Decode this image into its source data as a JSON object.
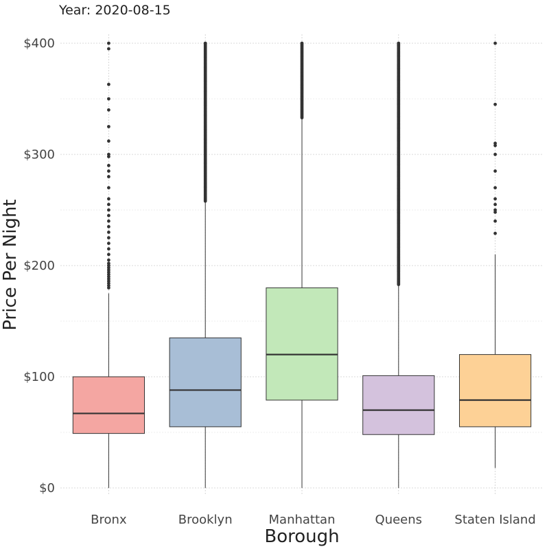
{
  "chart_data": {
    "type": "boxplot",
    "title": "Year: 2020-08-15",
    "xlabel": "Borough",
    "ylabel": "Price Per Night",
    "ylim": [
      0,
      400
    ],
    "y_ticks": [
      0,
      100,
      200,
      300,
      400
    ],
    "y_tick_labels": [
      "$0",
      "$100",
      "$200",
      "$300",
      "$400"
    ],
    "grid": true,
    "legend": "none",
    "categories": [
      "Bronx",
      "Brooklyn",
      "Manhattan",
      "Queens",
      "Staten Island"
    ],
    "boxes": [
      {
        "name": "Bronx",
        "color": "#F4A6A2",
        "whisker_low": 0,
        "q1": 49,
        "median": 67,
        "q3": 100,
        "whisker_high": 175,
        "outliers": [
          180,
          182,
          184,
          186,
          188,
          190,
          192,
          194,
          196,
          198,
          200,
          202,
          205,
          210,
          215,
          220,
          225,
          230,
          235,
          240,
          245,
          250,
          255,
          260,
          270,
          280,
          285,
          290,
          298,
          300,
          312,
          325,
          340,
          350,
          363,
          395,
          400
        ]
      },
      {
        "name": "Brooklyn",
        "color": "#A8BED6",
        "whisker_low": 0,
        "q1": 55,
        "median": 88,
        "q3": 135,
        "whisker_high": 257,
        "outliers_dense_range": [
          258,
          400
        ],
        "outliers": []
      },
      {
        "name": "Manhattan",
        "color": "#C2E8B9",
        "whisker_low": 0,
        "q1": 79,
        "median": 120,
        "q3": 180,
        "whisker_high": 332,
        "outliers_dense_range": [
          333,
          400
        ],
        "outliers": []
      },
      {
        "name": "Queens",
        "color": "#D4C2DD",
        "whisker_low": 0,
        "q1": 48,
        "median": 70,
        "q3": 101,
        "whisker_high": 182,
        "outliers_dense_range": [
          183,
          400
        ],
        "outliers": []
      },
      {
        "name": "Staten Island",
        "color": "#FDD196",
        "whisker_low": 18,
        "q1": 55,
        "median": 79,
        "q3": 120,
        "whisker_high": 210,
        "outliers": [
          229,
          240,
          248,
          250,
          255,
          260,
          270,
          285,
          300,
          308,
          310,
          345,
          400
        ]
      }
    ]
  }
}
